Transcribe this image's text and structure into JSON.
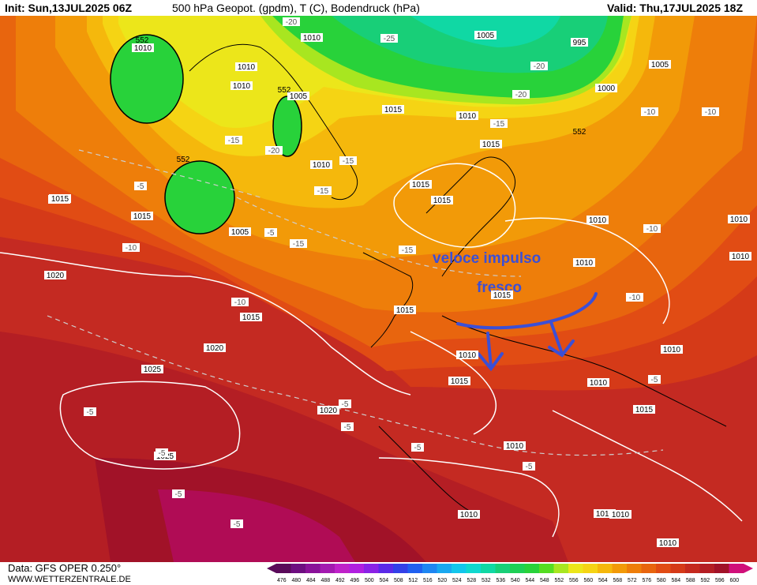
{
  "header": {
    "init": "Init: Sun,13JUL2025 06Z",
    "title": "500 hPa Geopot. (gpdm), T (C), Bodendruck (hPa)",
    "valid": "Valid: Thu,17JUL2025 18Z"
  },
  "footer": {
    "data_source": "Data: GFS OPER 0.250°",
    "website": "WWW.WETTERZENTRALE.DE"
  },
  "annotation": {
    "line1": "veloce impulso",
    "line2": "fresco",
    "color": "#3b4fd6"
  },
  "scale": {
    "values": [
      "476",
      "480",
      "484",
      "488",
      "492",
      "496",
      "500",
      "504",
      "508",
      "512",
      "516",
      "520",
      "524",
      "528",
      "532",
      "536",
      "540",
      "544",
      "548",
      "552",
      "556",
      "560",
      "564",
      "568",
      "572",
      "576",
      "580",
      "584",
      "588",
      "592",
      "596",
      "600"
    ],
    "colors": [
      "#5a0a5a",
      "#6e0e80",
      "#8a1299",
      "#a31ab0",
      "#bf22c9",
      "#b01fe0",
      "#8a22e6",
      "#5a2ae8",
      "#3340e8",
      "#2060f0",
      "#1e86f2",
      "#19a8f0",
      "#12c6ec",
      "#10d8cf",
      "#10d8a4",
      "#18cf78",
      "#1ecf55",
      "#28d23a",
      "#55dd22",
      "#a8e620",
      "#ece61a",
      "#f5d414",
      "#f5b80c",
      "#f29a08",
      "#ee7e0a",
      "#e8650e",
      "#e14c14",
      "#d53a18",
      "#c52a1e",
      "#b41e24",
      "#a11228",
      "#d0107a"
    ]
  },
  "pressure_labels": [
    "1010",
    "1010",
    "1010",
    "1005",
    "1010",
    "1005",
    "995",
    "1000",
    "1005",
    "1015",
    "1010",
    "1015",
    "1015",
    "1015",
    "1010",
    "1005",
    "1010",
    "1010",
    "1010",
    "1015",
    "1015",
    "1020",
    "1015",
    "1015",
    "1015",
    "1020",
    "1010",
    "1025",
    "1015",
    "1025",
    "1020",
    "1010",
    "1010",
    "1015",
    "1010",
    "1010",
    "1010",
    "1010",
    "1010",
    "1015",
    "1010"
  ],
  "temp_labels": [
    "-20",
    "-25",
    "-20",
    "-20",
    "-15",
    "-20",
    "-15",
    "-15",
    "-10",
    "-15",
    "-10",
    "-5",
    "-15",
    "-10",
    "-15",
    "-10",
    "-10",
    "-10",
    "-5",
    "-5",
    "-5",
    "-5",
    "-5",
    "-5",
    "-5",
    "-5",
    "-5",
    "-5"
  ],
  "height_labels": [
    "552",
    "552",
    "552",
    "552"
  ]
}
